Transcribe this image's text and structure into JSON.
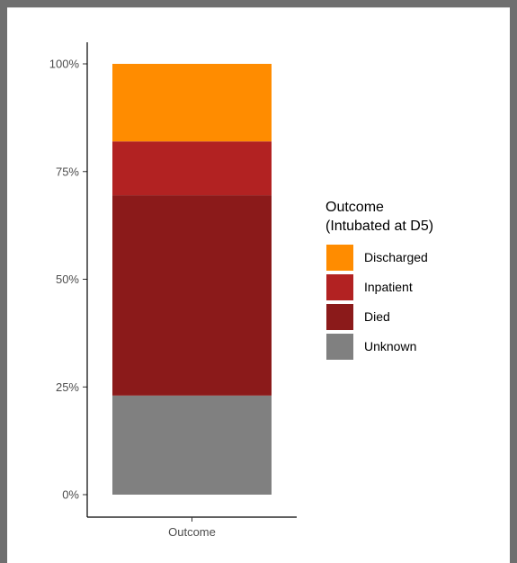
{
  "chart_data": {
    "type": "bar",
    "stacked": true,
    "categories": [
      "Outcome"
    ],
    "y_ticks": [
      "0%",
      "25%",
      "50%",
      "75%",
      "100%"
    ],
    "ylim": [
      0,
      100
    ],
    "legend": {
      "title_line1": "Outcome",
      "title_line2": "(Intubated at D5)",
      "placement": "right"
    },
    "series": [
      {
        "name": "Discharged",
        "value": 18,
        "color": "#ff8c00"
      },
      {
        "name": "Inpatient",
        "value": 12.5,
        "color": "#b22222"
      },
      {
        "name": "Died",
        "value": 46.5,
        "color": "#8b1a1a"
      },
      {
        "name": "Unknown",
        "value": 23,
        "color": "#808080"
      }
    ]
  }
}
